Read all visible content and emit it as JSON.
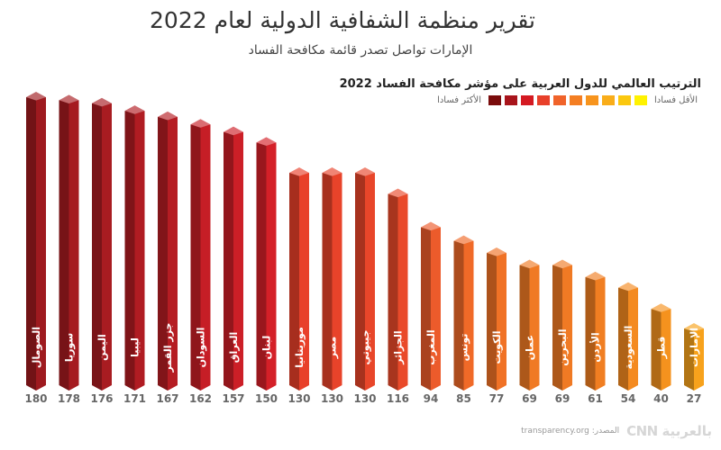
{
  "header": {
    "title": "تقرير منظمة الشفافية الدولية لعام 2022",
    "subtitle": "الإمارات تواصل تصدر قائمة مكافحة الفساد"
  },
  "legend": {
    "most_label": "الأكثر فسادا",
    "least_label": "الأقل فسادا",
    "colors": [
      "#7a0c0c",
      "#a8141b",
      "#d41a22",
      "#e8402a",
      "#f0632a",
      "#f47e22",
      "#f7941d",
      "#f9ad1a",
      "#fbc80f",
      "#fff200"
    ]
  },
  "footer": {
    "source": "المصدر: transparency.org",
    "logo": "CNN بالعربية"
  },
  "chart_data": {
    "type": "bar",
    "title": "الترتيب العالمي للدول العربية على مؤشر مكافحة الفساد 2022",
    "xlabel": "",
    "ylabel": "",
    "categories": [
      "الصومال",
      "سوريا",
      "اليمن",
      "ليبيا",
      "جزر القمر",
      "السودان",
      "العراق",
      "لبنان",
      "موريتانيا",
      "مصر",
      "جيبوتي",
      "الجزائر",
      "المغرب",
      "تونس",
      "الكويت",
      "عمان",
      "البحرين",
      "الأردن",
      "السعودية",
      "قطر",
      "الإمارات"
    ],
    "values": [
      180,
      178,
      176,
      171,
      167,
      162,
      157,
      150,
      130,
      130,
      130,
      116,
      94,
      85,
      77,
      69,
      69,
      61,
      54,
      40,
      27
    ],
    "bar_colors": [
      "#9e1a1f",
      "#a51b20",
      "#a81c21",
      "#b01c22",
      "#b51d23",
      "#c61e26",
      "#cc1f27",
      "#d42028",
      "#e8402a",
      "#e8432a",
      "#e8462a",
      "#e94a2a",
      "#ec5b2b",
      "#f06a28",
      "#f07226",
      "#f07a24",
      "#f07a24",
      "#f07e22",
      "#f48a20",
      "#f5921e",
      "#f7a21c"
    ],
    "value_labels_shown": true,
    "grid": false,
    "legend_position": "top-right"
  }
}
